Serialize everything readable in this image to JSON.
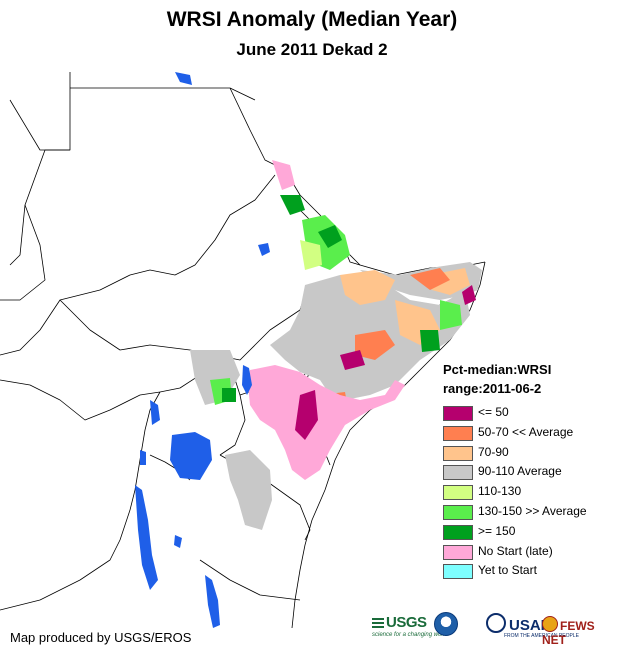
{
  "title": "WRSI Anomaly (Median Year)",
  "subtitle": "June 2011 Dekad 2",
  "legend": {
    "title": "Pct-median:WRSI",
    "range": "range:2011-06-2",
    "items": [
      {
        "label": "<= 50",
        "color": "#b5006e"
      },
      {
        "label": "50-70 << Average",
        "color": "#ff7f50"
      },
      {
        "label": "70-90",
        "color": "#ffc48c"
      },
      {
        "label": "90-110 Average",
        "color": "#c8c8c8"
      },
      {
        "label": "110-130",
        "color": "#d2ff82"
      },
      {
        "label": "130-150 >> Average",
        "color": "#5aee4c"
      },
      {
        "label": ">= 150",
        "color": "#00a01e"
      },
      {
        "label": "No Start (late)",
        "color": "#ffa8d8"
      },
      {
        "label": "Yet to Start",
        "color": "#7effff"
      }
    ]
  },
  "credit": "Map produced by USGS/EROS",
  "logos": {
    "usgs": "USGS",
    "usgs_tagline": "science for a changing world",
    "noaa": "noaa-logo",
    "usaid": "USAID",
    "usaid_tagline": "FROM THE AMERICAN PEOPLE",
    "fews": "FEWS NET"
  },
  "colors": {
    "water": "#1f5fe8",
    "boundary": "#000000",
    "land": "#ffffff"
  }
}
